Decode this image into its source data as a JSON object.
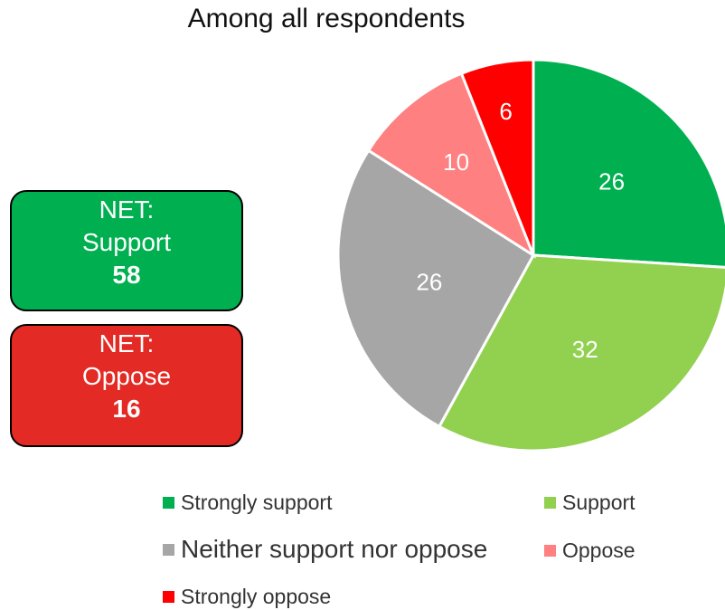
{
  "chart_data": {
    "type": "pie",
    "title": "Among all respondents",
    "series": [
      {
        "label": "Strongly support",
        "value": 26,
        "color": "#00b050"
      },
      {
        "label": "Support",
        "value": 32,
        "color": "#92d050"
      },
      {
        "label": "Neither support nor oppose",
        "value": 26,
        "color": "#a6a6a6"
      },
      {
        "label": "Oppose",
        "value": 10,
        "color": "#ff8080"
      },
      {
        "label": "Strongly oppose",
        "value": 6,
        "color": "#ff0000"
      }
    ],
    "legend_position": "bottom",
    "summary_boxes": [
      {
        "line1": "NET:",
        "line2": "Support",
        "value": "58",
        "color": "#00b050"
      },
      {
        "line1": "NET:",
        "line2": "Oppose",
        "value": "16",
        "color": "#e42a24"
      }
    ]
  }
}
